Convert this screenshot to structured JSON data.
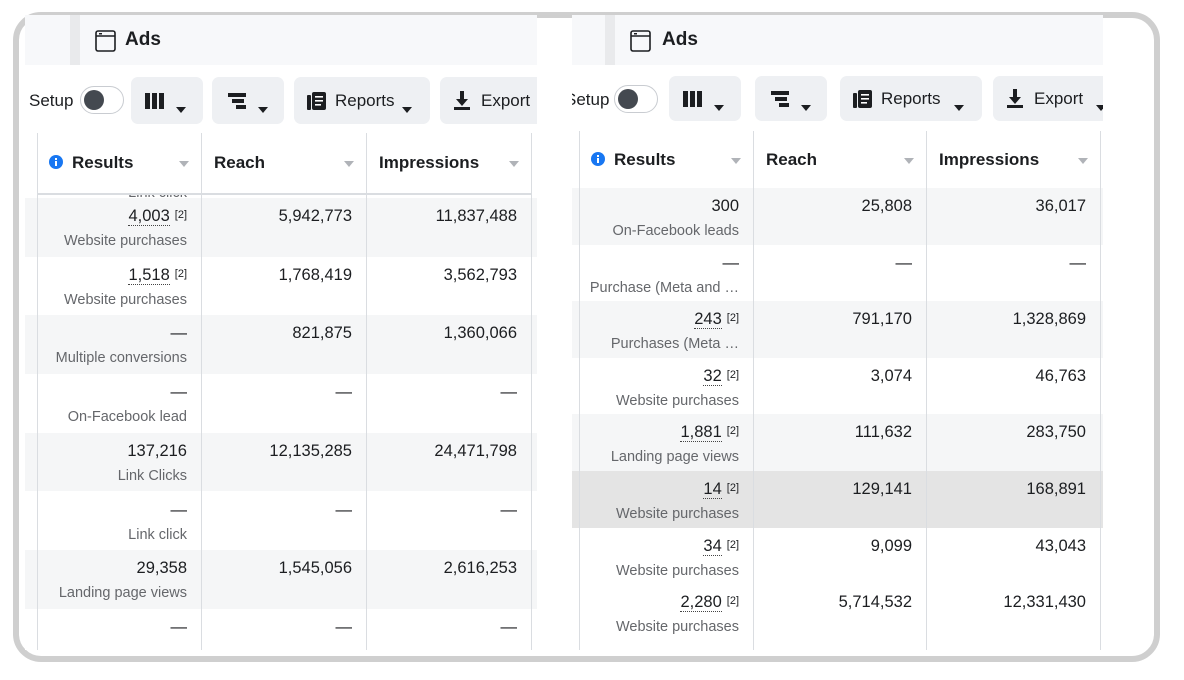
{
  "panels": [
    {
      "title": "Ads",
      "toolbar": {
        "setup": "Setup",
        "reports": "Reports",
        "export": "Export"
      },
      "columns": [
        "Results",
        "Reach",
        "Impressions"
      ],
      "partial_label": "Link click",
      "rows": [
        {
          "result": "4,003",
          "badge": "[2]",
          "sub": "Website purchases",
          "reach": "5,942,773",
          "impressions": "11,837,488"
        },
        {
          "result": "1,518",
          "badge": "[2]",
          "sub": "Website purchases",
          "reach": "1,768,419",
          "impressions": "3,562,793"
        },
        {
          "result": "—",
          "sub": "Multiple conversions",
          "reach": "821,875",
          "impressions": "1,360,066"
        },
        {
          "result": "—",
          "sub": "On-Facebook lead",
          "reach": "—",
          "impressions": "—"
        },
        {
          "result": "137,216",
          "sub": "Link Clicks",
          "reach": "12,135,285",
          "impressions": "24,471,798"
        },
        {
          "result": "—",
          "sub": "Link click",
          "reach": "—",
          "impressions": "—"
        },
        {
          "result": "29,358",
          "sub": "Landing page views",
          "reach": "1,545,056",
          "impressions": "2,616,253"
        },
        {
          "result": "—",
          "reach": "—",
          "impressions": "—"
        }
      ]
    },
    {
      "title": "Ads",
      "toolbar": {
        "setup": "Setup",
        "reports": "Reports",
        "export": "Export"
      },
      "columns": [
        "Results",
        "Reach",
        "Impressions"
      ],
      "rows": [
        {
          "result": "300",
          "sub": "On-Facebook leads",
          "reach": "25,808",
          "impressions": "36,017"
        },
        {
          "result": "—",
          "sub": "Purchase (Meta and …",
          "reach": "—",
          "impressions": "—"
        },
        {
          "result": "243",
          "badge": "[2]",
          "sub": "Purchases (Meta …",
          "reach": "791,170",
          "impressions": "1,328,869"
        },
        {
          "result": "32",
          "badge": "[2]",
          "sub": "Website purchases",
          "reach": "3,074",
          "impressions": "46,763"
        },
        {
          "result": "1,881",
          "badge": "[2]",
          "sub": "Landing page views",
          "reach": "111,632",
          "impressions": "283,750"
        },
        {
          "result": "14",
          "badge": "[2]",
          "sub": "Website purchases",
          "reach": "129,141",
          "impressions": "168,891"
        },
        {
          "result": "34",
          "badge": "[2]",
          "sub": "Website purchases",
          "reach": "9,099",
          "impressions": "43,043"
        },
        {
          "result": "2,280",
          "badge": "[2]",
          "sub": "Website purchases",
          "reach": "5,714,532",
          "impressions": "12,331,430"
        }
      ]
    }
  ]
}
